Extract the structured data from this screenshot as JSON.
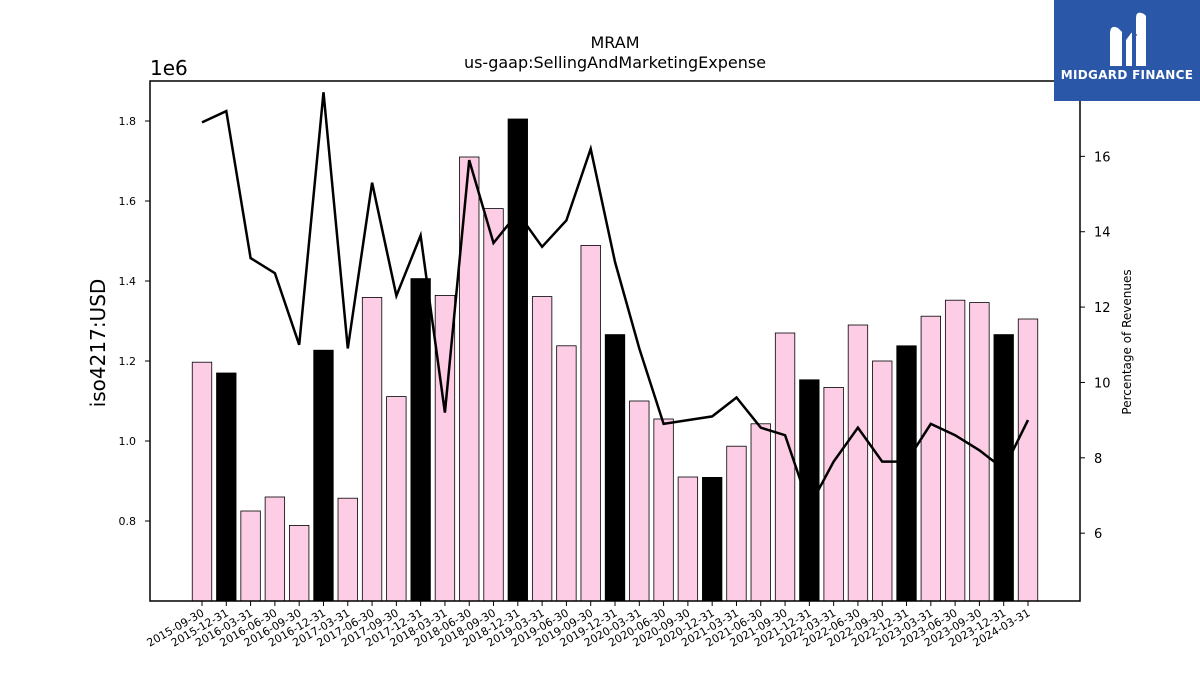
{
  "chart_data": {
    "type": "bar",
    "title": "MRAM",
    "subtitle": "us-gaap:SellingAndMarketingExpense",
    "ylabel": "iso4217:USD",
    "y_offset_label": "1e6",
    "y2label": "Percentage of Revenues",
    "ylim": [
      0.6,
      1.9
    ],
    "y2lim": [
      4.2,
      18.0
    ],
    "yticks": [
      "0.8",
      "1.0",
      "1.2",
      "1.4",
      "1.6",
      "1.8"
    ],
    "y2ticks": [
      "6",
      "8",
      "10",
      "12",
      "14",
      "16"
    ],
    "grid": false,
    "categories": [
      "2015-09-30",
      "2015-12-31",
      "2016-03-31",
      "2016-06-30",
      "2016-09-30",
      "2016-12-31",
      "2017-03-31",
      "2017-06-30",
      "2017-09-30",
      "2017-12-31",
      "2018-03-31",
      "2018-06-30",
      "2018-09-30",
      "2018-12-31",
      "2019-03-31",
      "2019-06-30",
      "2019-09-30",
      "2019-12-31",
      "2020-03-31",
      "2020-06-30",
      "2020-09-30",
      "2020-12-31",
      "2021-03-31",
      "2021-06-30",
      "2021-09-30",
      "2021-12-31",
      "2022-03-31",
      "2022-06-30",
      "2022-09-30",
      "2022-12-31",
      "2023-03-31",
      "2023-06-30",
      "2023-09-30",
      "2023-12-31",
      "2024-03-31"
    ],
    "series": [
      {
        "type": "bar",
        "values": [
          1.197,
          1.17,
          0.825,
          0.86,
          0.789,
          1.227,
          0.857,
          1.359,
          1.111,
          1.406,
          1.364,
          1.71,
          1.581,
          1.805,
          1.361,
          1.238,
          1.489,
          1.266,
          1.1,
          1.055,
          0.91,
          0.909,
          0.987,
          1.043,
          1.27,
          1.153,
          1.134,
          1.29,
          1.2,
          1.238,
          1.312,
          1.352,
          1.346,
          1.266,
          1.305
        ],
        "highlight": [
          false,
          true,
          false,
          false,
          false,
          true,
          false,
          false,
          false,
          true,
          false,
          false,
          false,
          true,
          false,
          false,
          false,
          true,
          false,
          false,
          false,
          true,
          false,
          false,
          false,
          true,
          false,
          false,
          false,
          true,
          false,
          false,
          false,
          true,
          false
        ]
      },
      {
        "type": "line",
        "axis": "right",
        "values": [
          16.9,
          17.2,
          13.3,
          12.9,
          11.0,
          17.7,
          10.9,
          15.3,
          12.3,
          13.9,
          9.2,
          15.9,
          13.7,
          14.5,
          13.6,
          14.3,
          16.2,
          13.2,
          10.9,
          8.9,
          9.0,
          9.1,
          9.6,
          8.8,
          8.6,
          6.7,
          7.9,
          8.8,
          7.9,
          7.9,
          8.9,
          8.6,
          8.2,
          7.7,
          9.0
        ]
      }
    ],
    "colors": {
      "bar": "#fccde5",
      "bar_highlight": "#000000",
      "line": "#000000"
    }
  },
  "logo": {
    "text": "MIDGARD FINANCE",
    "bg": "#2a57a8"
  }
}
